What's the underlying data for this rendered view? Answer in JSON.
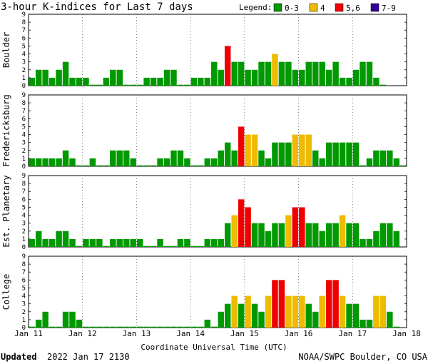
{
  "header": {
    "title": "3-hour K-indices for Last 7 days",
    "legend_title": "Legend:"
  },
  "legend": [
    {
      "label": "0-3",
      "color": "#009900"
    },
    {
      "label": "4",
      "color": "#EEBB00"
    },
    {
      "label": "5,6",
      "color": "#EE0000"
    },
    {
      "label": "7-9",
      "color": "#330099"
    }
  ],
  "axis": {
    "x_tick_labels": [
      "Jan 11",
      "Jan 12",
      "Jan 13",
      "Jan 14",
      "Jan 15",
      "Jan 16",
      "Jan 17",
      "Jan 18"
    ],
    "y_tick_labels": [
      "0",
      "1",
      "2",
      "3",
      "4",
      "5",
      "6",
      "7",
      "8",
      "9"
    ],
    "xlabel": "Coordinate Universal Time (UTC)"
  },
  "footer": {
    "updated_label": "Updated",
    "updated_value": "2022 Jan 17 2130",
    "source": "NOAA/SWPC Boulder, CO USA"
  },
  "chart_data": {
    "type": "bar",
    "x_unit": "3-hour intervals starting Jan 11 00 UTC",
    "ylim": [
      0,
      9
    ],
    "color_thresholds": {
      "0-3": "#009900",
      "4": "#EEBB00",
      "5-6": "#EE0000",
      "7-9": "#330099"
    },
    "series": [
      {
        "name": "Boulder",
        "values": [
          1,
          2,
          2,
          1,
          2,
          3,
          1,
          1,
          1,
          0,
          0,
          1,
          2,
          2,
          0,
          0,
          0,
          1,
          1,
          1,
          2,
          2,
          0,
          0,
          1,
          1,
          1,
          3,
          2,
          5,
          3,
          3,
          2,
          2,
          3,
          3,
          4,
          3,
          3,
          2,
          2,
          3,
          3,
          3,
          2,
          3,
          1,
          1,
          2,
          3,
          3,
          1,
          0
        ]
      },
      {
        "name": "Fredericksburg",
        "values": [
          1,
          1,
          1,
          1,
          1,
          2,
          1,
          0,
          0,
          1,
          0,
          0,
          2,
          2,
          2,
          1,
          0,
          0,
          0,
          1,
          1,
          2,
          2,
          1,
          0,
          0,
          1,
          1,
          2,
          3,
          2,
          5,
          4,
          4,
          2,
          1,
          3,
          3,
          3,
          4,
          4,
          4,
          2,
          1,
          3,
          3,
          3,
          3,
          3,
          0,
          1,
          2,
          2,
          2,
          1,
          0
        ]
      },
      {
        "name": "Est. Planetary",
        "values": [
          1,
          2,
          1,
          1,
          2,
          2,
          1,
          0,
          1,
          1,
          1,
          0,
          1,
          1,
          1,
          1,
          1,
          0,
          0,
          1,
          0,
          0,
          1,
          1,
          0,
          0,
          1,
          1,
          1,
          3,
          4,
          6,
          5,
          3,
          3,
          2,
          3,
          3,
          4,
          5,
          5,
          3,
          3,
          2,
          3,
          3,
          4,
          3,
          3,
          1,
          1,
          2,
          3,
          3,
          2
        ]
      },
      {
        "name": "College",
        "values": [
          0,
          1,
          2,
          0,
          0,
          2,
          2,
          1,
          0,
          0,
          0,
          0,
          0,
          0,
          0,
          0,
          0,
          0,
          0,
          0,
          0,
          0,
          0,
          0,
          0,
          0,
          1,
          0,
          2,
          3,
          4,
          3,
          4,
          3,
          2,
          4,
          6,
          6,
          4,
          4,
          4,
          3,
          2,
          4,
          6,
          6,
          4,
          3,
          3,
          1,
          1,
          4,
          4,
          2,
          0
        ]
      }
    ]
  }
}
